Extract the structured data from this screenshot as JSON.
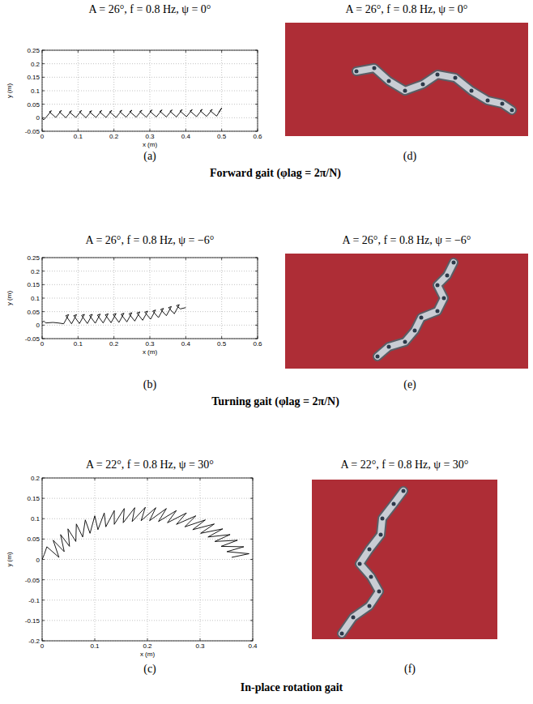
{
  "chart_data": [
    {
      "type": "line",
      "title": "A = 26°, f = 0.8 Hz, ψ = 0°",
      "x_label": "x (m)",
      "y_label": "y (m)",
      "label": "(a)",
      "xlim": [
        0,
        0.6
      ],
      "ylim": [
        -0.05,
        0.25
      ],
      "xticks": [
        0,
        0.1,
        0.2,
        0.3,
        0.4,
        0.5,
        0.6
      ],
      "yticks": [
        -0.05,
        0,
        0.05,
        0.1,
        0.15,
        0.2,
        0.25
      ],
      "grid": true,
      "series": [
        {
          "color": "#000000",
          "line_style": "solid",
          "x": [
            0,
            0.004,
            0.01,
            0.026,
            0.02,
            0.038,
            0.054,
            0.048,
            0.066,
            0.082,
            0.076,
            0.094,
            0.11,
            0.104,
            0.122,
            0.138,
            0.132,
            0.15,
            0.166,
            0.16,
            0.178,
            0.194,
            0.188,
            0.206,
            0.222,
            0.216,
            0.234,
            0.25,
            0.244,
            0.262,
            0.278,
            0.272,
            0.29,
            0.306,
            0.3,
            0.318,
            0.334,
            0.328,
            0.346,
            0.362,
            0.356,
            0.374,
            0.39,
            0.384,
            0.402,
            0.418,
            0.412,
            0.43,
            0.446,
            0.44,
            0.458,
            0.474,
            0.468,
            0.486,
            0.5,
            0.492
          ],
          "values": [
            0,
            -0.008,
            0,
            0.026,
            0.022,
            0.001,
            0.027,
            0.022,
            0,
            0.026,
            0.021,
            0.001,
            0.027,
            0.022,
            0,
            0.026,
            0.022,
            0.001,
            0.027,
            0.022,
            0.001,
            0.027,
            0.022,
            0.001,
            0.028,
            0.023,
            0.002,
            0.028,
            0.023,
            0.002,
            0.028,
            0.023,
            0.002,
            0.029,
            0.024,
            0.003,
            0.029,
            0.024,
            0.003,
            0.029,
            0.024,
            0.003,
            0.03,
            0.025,
            0.004,
            0.03,
            0.025,
            0.004,
            0.031,
            0.026,
            0.005,
            0.031,
            0.026,
            0.006,
            0.036,
            0.02
          ]
        }
      ]
    },
    {
      "type": "line",
      "title": "A = 26°, f = 0.8 Hz, ψ = −6°",
      "x_label": "x (m)",
      "y_label": "y (m)",
      "label": "(b)",
      "xlim": [
        0,
        0.6
      ],
      "ylim": [
        -0.05,
        0.25
      ],
      "xticks": [
        0,
        0.1,
        0.2,
        0.3,
        0.4,
        0.5,
        0.6
      ],
      "yticks": [
        -0.05,
        0,
        0.05,
        0.1,
        0.15,
        0.2,
        0.25
      ],
      "grid": true,
      "series": [
        {
          "color": "#000000",
          "line_style": "solid",
          "x": [
            0,
            0.005,
            0.01,
            0.03,
            0.045,
            0.06,
            0.074,
            0.066,
            0.082,
            0.096,
            0.088,
            0.104,
            0.118,
            0.11,
            0.126,
            0.14,
            0.132,
            0.148,
            0.162,
            0.154,
            0.17,
            0.184,
            0.176,
            0.192,
            0.206,
            0.198,
            0.214,
            0.228,
            0.22,
            0.236,
            0.25,
            0.242,
            0.258,
            0.272,
            0.264,
            0.28,
            0.294,
            0.286,
            0.302,
            0.316,
            0.308,
            0.324,
            0.338,
            0.33,
            0.346,
            0.36,
            0.352,
            0.368,
            0.382,
            0.374,
            0.385,
            0.4
          ],
          "values": [
            0.01,
            0.015,
            0.008,
            0.01,
            0.008,
            0.005,
            0.039,
            0.035,
            0.005,
            0.039,
            0.035,
            0.006,
            0.04,
            0.036,
            0.006,
            0.04,
            0.036,
            0.007,
            0.041,
            0.037,
            0.008,
            0.042,
            0.038,
            0.009,
            0.043,
            0.039,
            0.01,
            0.044,
            0.04,
            0.012,
            0.046,
            0.042,
            0.015,
            0.049,
            0.045,
            0.018,
            0.052,
            0.048,
            0.022,
            0.056,
            0.052,
            0.028,
            0.062,
            0.058,
            0.035,
            0.069,
            0.065,
            0.042,
            0.076,
            0.072,
            0.06,
            0.065
          ]
        }
      ]
    },
    {
      "type": "line",
      "title": "A = 22°, f = 0.8 Hz, ψ = 30°",
      "x_label": "x (m)",
      "y_label": "y (m)",
      "label": "(c)",
      "xlim": [
        0,
        0.4
      ],
      "ylim": [
        -0.2,
        0.2
      ],
      "xticks": [
        0,
        0.1,
        0.2,
        0.3,
        0.4
      ],
      "yticks": [
        -0.2,
        -0.15,
        -0.1,
        -0.05,
        0,
        0.05,
        0.1,
        0.15,
        0.2
      ],
      "grid": true,
      "series": [
        {
          "color": "#000000",
          "line_style": "solid",
          "x": [
            0,
            0.004,
            0.009,
            0.032,
            0.021,
            0.042,
            0.035,
            0.052,
            0.049,
            0.064,
            0.065,
            0.077,
            0.082,
            0.091,
            0.1,
            0.106,
            0.118,
            0.121,
            0.137,
            0.137,
            0.156,
            0.154,
            0.176,
            0.171,
            0.196,
            0.188,
            0.216,
            0.204,
            0.236,
            0.221,
            0.255,
            0.238,
            0.274,
            0.255,
            0.292,
            0.271,
            0.31,
            0.286,
            0.327,
            0.301,
            0.343,
            0.315,
            0.357,
            0.328,
            0.371,
            0.34,
            0.383,
            0.351,
            0.393,
            0.36
          ],
          "values": [
            0,
            0.012,
            0.031,
            0.005,
            0.047,
            0.019,
            0.061,
            0.032,
            0.075,
            0.044,
            0.087,
            0.055,
            0.097,
            0.064,
            0.107,
            0.073,
            0.114,
            0.08,
            0.12,
            0.086,
            0.125,
            0.09,
            0.127,
            0.093,
            0.128,
            0.095,
            0.127,
            0.095,
            0.125,
            0.093,
            0.12,
            0.09,
            0.114,
            0.086,
            0.107,
            0.08,
            0.097,
            0.073,
            0.087,
            0.064,
            0.075,
            0.055,
            0.061,
            0.044,
            0.047,
            0.032,
            0.031,
            0.019,
            0.014,
            0.005
          ]
        }
      ]
    }
  ],
  "photos": [
    {
      "title": "A = 26°, f = 0.8 Hz, ψ = 0°",
      "label": "(d)"
    },
    {
      "title": "A = 26°, f = 0.8 Hz, ψ = −6°",
      "label": "(e)"
    },
    {
      "title": "A = 22°, f = 0.8 Hz, ψ = 30°",
      "label": "(f)"
    }
  ],
  "captions": [
    "Forward gait (φlag = 2π/N)",
    "Turning gait (φlag = 2π/N)",
    "In-place rotation gait"
  ]
}
